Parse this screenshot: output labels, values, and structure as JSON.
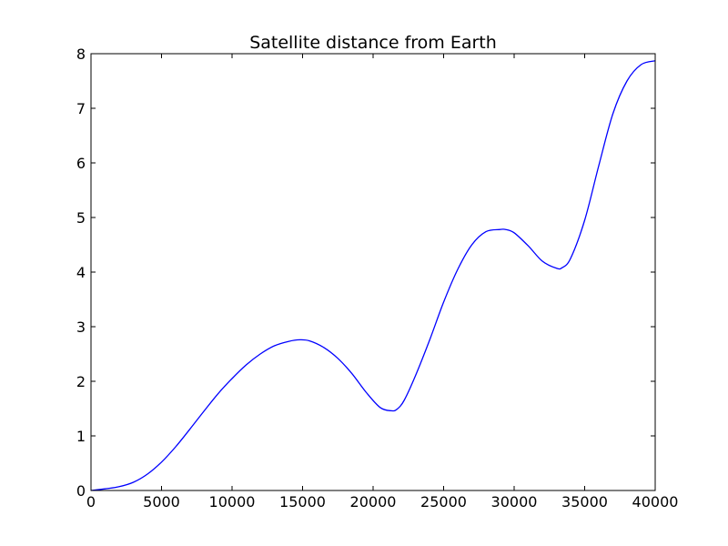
{
  "chart_data": {
    "type": "line",
    "title": "Satellite distance from Earth",
    "xlabel": "",
    "ylabel": "",
    "xlim": [
      0,
      40000
    ],
    "ylim": [
      0,
      8
    ],
    "xticks": [
      0,
      5000,
      10000,
      15000,
      20000,
      25000,
      30000,
      35000,
      40000
    ],
    "yticks": [
      0,
      1,
      2,
      3,
      4,
      5,
      6,
      7,
      8
    ],
    "grid": false,
    "legend": "none",
    "series": [
      {
        "color": "#0000ff",
        "x": [
          0,
          1000,
          2000,
          3000,
          4000,
          5000,
          6000,
          7000,
          8000,
          9000,
          10000,
          11000,
          12000,
          13000,
          14000,
          14800,
          15500,
          16500,
          17500,
          18500,
          19500,
          20500,
          21300,
          21700,
          22200,
          23000,
          24000,
          25000,
          26000,
          27000,
          28000,
          29000,
          29400,
          30000,
          31000,
          32000,
          33000,
          33400,
          34000,
          35000,
          36000,
          37000,
          38000,
          39000,
          40000
        ],
        "y": [
          0.0,
          0.03,
          0.07,
          0.15,
          0.3,
          0.52,
          0.8,
          1.12,
          1.45,
          1.77,
          2.05,
          2.3,
          2.5,
          2.65,
          2.73,
          2.76,
          2.74,
          2.62,
          2.42,
          2.14,
          1.8,
          1.52,
          1.46,
          1.49,
          1.65,
          2.1,
          2.75,
          3.45,
          4.05,
          4.5,
          4.74,
          4.78,
          4.78,
          4.72,
          4.48,
          4.2,
          4.07,
          4.08,
          4.25,
          4.95,
          5.95,
          6.9,
          7.5,
          7.8,
          7.87
        ]
      }
    ]
  }
}
